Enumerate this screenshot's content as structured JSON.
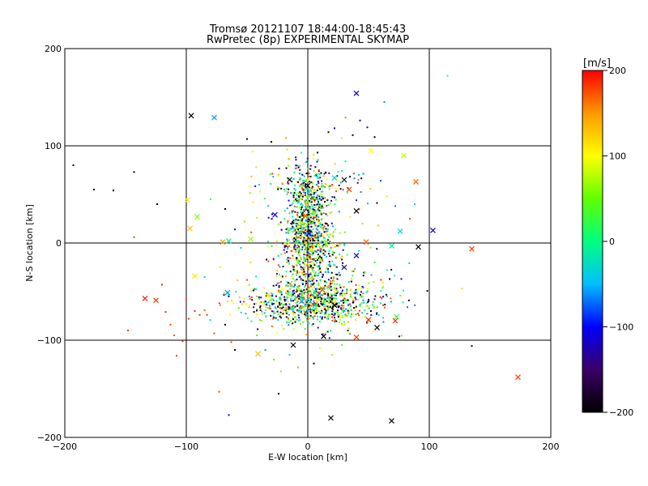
{
  "chart_data": {
    "type": "scatter",
    "title": "Tromsø 20121107 18:44:00-18:45:43",
    "subtitle": "RwPretec (8p) EXPERIMENTAL SKYMAP",
    "xlabel": "E-W location [km]",
    "ylabel": "N-S location [km]",
    "xlim": [
      -200,
      200
    ],
    "ylim": [
      -200,
      200
    ],
    "xticks": [
      -200,
      -100,
      0,
      100,
      200
    ],
    "yticks": [
      -200,
      -100,
      0,
      100,
      200
    ],
    "xtick_labels": [
      "−200",
      "−100",
      "0",
      "100",
      "200"
    ],
    "ytick_labels": [
      "−200",
      "−100",
      "0",
      "100",
      "200"
    ],
    "grid": true,
    "colorbar": {
      "label": "[m/s]",
      "range": [
        -200,
        200
      ],
      "ticks": [
        200,
        100,
        0,
        -100,
        -200
      ],
      "tick_labels": [
        "200",
        "100",
        "0",
        "−100",
        "−200"
      ],
      "colors": [
        "#000000",
        "#3a0066",
        "#0000ff",
        "#00bfff",
        "#00ff80",
        "#60ff00",
        "#ffff00",
        "#ff9900",
        "#ff0000"
      ]
    },
    "markers": {
      "small": "dot",
      "large": "x"
    },
    "points_large": [
      {
        "x": 40,
        "y": 154,
        "v": -120
      },
      {
        "x": -96,
        "y": 131,
        "v": -200
      },
      {
        "x": -77,
        "y": 129,
        "v": -60
      },
      {
        "x": 79,
        "y": 90,
        "v": 80
      },
      {
        "x": 52,
        "y": 95,
        "v": 100
      },
      {
        "x": 89,
        "y": 63,
        "v": 170
      },
      {
        "x": 40,
        "y": 33,
        "v": -200
      },
      {
        "x": 30,
        "y": 65,
        "v": -190
      },
      {
        "x": 22,
        "y": 67,
        "v": -30
      },
      {
        "x": 0,
        "y": 59,
        "v": -200
      },
      {
        "x": -99,
        "y": 44,
        "v": 110
      },
      {
        "x": -91,
        "y": 27,
        "v": 60
      },
      {
        "x": -97,
        "y": 15,
        "v": 130
      },
      {
        "x": -70,
        "y": 1,
        "v": 150
      },
      {
        "x": -65,
        "y": 2,
        "v": -10
      },
      {
        "x": -47,
        "y": 4,
        "v": 70
      },
      {
        "x": -27,
        "y": 29,
        "v": -110
      },
      {
        "x": 103,
        "y": 13,
        "v": -120
      },
      {
        "x": 76,
        "y": 12,
        "v": -30
      },
      {
        "x": 69,
        "y": -3,
        "v": -10
      },
      {
        "x": 91,
        "y": -4,
        "v": -200
      },
      {
        "x": 135,
        "y": -6,
        "v": 180
      },
      {
        "x": 40,
        "y": -13,
        "v": -120
      },
      {
        "x": 48,
        "y": 1,
        "v": 170
      },
      {
        "x": -93,
        "y": -34,
        "v": 110
      },
      {
        "x": -66,
        "y": -51,
        "v": -60
      },
      {
        "x": -134,
        "y": -57,
        "v": 190
      },
      {
        "x": -125,
        "y": -59,
        "v": 180
      },
      {
        "x": 73,
        "y": -76,
        "v": 30
      },
      {
        "x": 72,
        "y": -80,
        "v": 190
      },
      {
        "x": 50,
        "y": -79,
        "v": 190
      },
      {
        "x": 57,
        "y": -87,
        "v": -200
      },
      {
        "x": 40,
        "y": -97,
        "v": 180
      },
      {
        "x": 13,
        "y": -96,
        "v": -200
      },
      {
        "x": -12,
        "y": -105,
        "v": -200
      },
      {
        "x": -41,
        "y": -114,
        "v": 130
      },
      {
        "x": 173,
        "y": -138,
        "v": 180
      },
      {
        "x": 19,
        "y": -180,
        "v": -200
      },
      {
        "x": 69,
        "y": -183,
        "v": -200
      },
      {
        "x": 1,
        "y": 10,
        "v": -120
      },
      {
        "x": -2,
        "y": 28,
        "v": 170
      },
      {
        "x": 3,
        "y": -7,
        "v": 120
      },
      {
        "x": -5,
        "y": -60,
        "v": -60
      },
      {
        "x": 12,
        "y": -48,
        "v": 170
      },
      {
        "x": 22,
        "y": -64,
        "v": -200
      },
      {
        "x": -15,
        "y": 65,
        "v": -200
      },
      {
        "x": -33,
        "y": -54,
        "v": 110
      },
      {
        "x": 30,
        "y": -25,
        "v": -120
      },
      {
        "x": 34,
        "y": 55,
        "v": 180
      }
    ],
    "points_small": [
      {
        "x": -193,
        "y": 80,
        "v": -200
      },
      {
        "x": -176,
        "y": 55,
        "v": -200
      },
      {
        "x": -160,
        "y": 54,
        "v": -200
      },
      {
        "x": -143,
        "y": 73,
        "v": -200
      },
      {
        "x": -143,
        "y": 6,
        "v": 180
      },
      {
        "x": -148,
        "y": -90,
        "v": 180
      },
      {
        "x": -124,
        "y": 40,
        "v": -200
      },
      {
        "x": -120,
        "y": -43,
        "v": 190
      },
      {
        "x": -117,
        "y": -71,
        "v": 190
      },
      {
        "x": -113,
        "y": -84,
        "v": 180
      },
      {
        "x": -103,
        "y": -101,
        "v": 190
      },
      {
        "x": -108,
        "y": -116,
        "v": 180
      },
      {
        "x": -110,
        "y": -95,
        "v": 170
      },
      {
        "x": -98,
        "y": -78,
        "v": 180
      },
      {
        "x": -93,
        "y": -70,
        "v": 190
      },
      {
        "x": -89,
        "y": -74,
        "v": 180
      },
      {
        "x": -85,
        "y": -69,
        "v": 170
      },
      {
        "x": -83,
        "y": -74,
        "v": 185
      },
      {
        "x": -77,
        "y": -93,
        "v": 175
      },
      {
        "x": -72,
        "y": -64,
        "v": 150
      },
      {
        "x": -68,
        "y": -84,
        "v": -200
      },
      {
        "x": -63,
        "y": -102,
        "v": 175
      },
      {
        "x": -73,
        "y": -153,
        "v": 180
      },
      {
        "x": -65,
        "y": -177,
        "v": -120
      },
      {
        "x": -24,
        "y": -155,
        "v": -200
      },
      {
        "x": -60,
        "y": -110,
        "v": -200
      },
      {
        "x": -50,
        "y": 107,
        "v": -200
      },
      {
        "x": -30,
        "y": 104,
        "v": -200
      },
      {
        "x": -18,
        "y": 108,
        "v": 150
      },
      {
        "x": -5,
        "y": 100,
        "v": -20
      },
      {
        "x": 8,
        "y": 93,
        "v": -200
      },
      {
        "x": 17,
        "y": 114,
        "v": -200
      },
      {
        "x": 22,
        "y": 118,
        "v": -120
      },
      {
        "x": 28,
        "y": 108,
        "v": 110
      },
      {
        "x": 31,
        "y": 129,
        "v": 160
      },
      {
        "x": 37,
        "y": 111,
        "v": -200
      },
      {
        "x": 43,
        "y": 126,
        "v": -120
      },
      {
        "x": 49,
        "y": 119,
        "v": -110
      },
      {
        "x": 55,
        "y": 109,
        "v": -200
      },
      {
        "x": 63,
        "y": 145,
        "v": -60
      },
      {
        "x": 115,
        "y": 172,
        "v": 20
      },
      {
        "x": 60,
        "y": 64,
        "v": -80
      },
      {
        "x": 65,
        "y": 48,
        "v": 80
      },
      {
        "x": 72,
        "y": 38,
        "v": -70
      },
      {
        "x": 84,
        "y": 25,
        "v": 180
      },
      {
        "x": 88,
        "y": 40,
        "v": -40
      },
      {
        "x": 127,
        "y": -47,
        "v": 120
      },
      {
        "x": 135,
        "y": -106,
        "v": -200
      },
      {
        "x": 82,
        "y": -66,
        "v": -70
      },
      {
        "x": 77,
        "y": -37,
        "v": -120
      },
      {
        "x": 62,
        "y": -45,
        "v": 80
      },
      {
        "x": 55,
        "y": -20,
        "v": 30
      },
      {
        "x": 58,
        "y": 18,
        "v": 130
      },
      {
        "x": 50,
        "y": -60,
        "v": -180
      },
      {
        "x": 45,
        "y": -45,
        "v": -100
      },
      {
        "x": 52,
        "y": -70,
        "v": -200
      },
      {
        "x": 60,
        "y": -62,
        "v": -10
      },
      {
        "x": 47,
        "y": -30,
        "v": 40
      },
      {
        "x": 42,
        "y": -8,
        "v": -30
      },
      {
        "x": 45,
        "y": 20,
        "v": 60
      },
      {
        "x": 40,
        "y": 44,
        "v": -90
      },
      {
        "x": 35,
        "y": 27,
        "v": 110
      },
      {
        "x": 42,
        "y": 70,
        "v": -40
      },
      {
        "x": 31,
        "y": 84,
        "v": 0
      },
      {
        "x": 22,
        "y": 47,
        "v": -200
      },
      {
        "x": 13,
        "y": 58,
        "v": 30
      },
      {
        "x": -40,
        "y": 60,
        "v": -40
      },
      {
        "x": -45,
        "y": 42,
        "v": 90
      },
      {
        "x": -52,
        "y": 22,
        "v": 60
      },
      {
        "x": -60,
        "y": 14,
        "v": -120
      },
      {
        "x": -55,
        "y": -5,
        "v": -40
      },
      {
        "x": -47,
        "y": -20,
        "v": 80
      },
      {
        "x": -50,
        "y": -38,
        "v": 180
      },
      {
        "x": -42,
        "y": -55,
        "v": 140
      },
      {
        "x": -38,
        "y": -80,
        "v": 70
      },
      {
        "x": -42,
        "y": -95,
        "v": 40
      },
      {
        "x": -35,
        "y": -110,
        "v": -60
      },
      {
        "x": -28,
        "y": -120,
        "v": 40
      },
      {
        "x": -22,
        "y": -132,
        "v": 60
      },
      {
        "x": -15,
        "y": -115,
        "v": -30
      },
      {
        "x": -8,
        "y": -128,
        "v": 150
      },
      {
        "x": 5,
        "y": -124,
        "v": -200
      },
      {
        "x": 10,
        "y": -108,
        "v": 90
      },
      {
        "x": 20,
        "y": -115,
        "v": 70
      },
      {
        "x": 28,
        "y": -105,
        "v": 50
      },
      {
        "x": 33,
        "y": -90,
        "v": -150
      },
      {
        "x": -68,
        "y": 35,
        "v": -200
      },
      {
        "x": -80,
        "y": 45,
        "v": 30
      },
      {
        "x": -85,
        "y": -35,
        "v": -40
      },
      {
        "x": -72,
        "y": -25,
        "v": 90
      },
      {
        "x": -100,
        "y": -58,
        "v": 180
      }
    ]
  }
}
